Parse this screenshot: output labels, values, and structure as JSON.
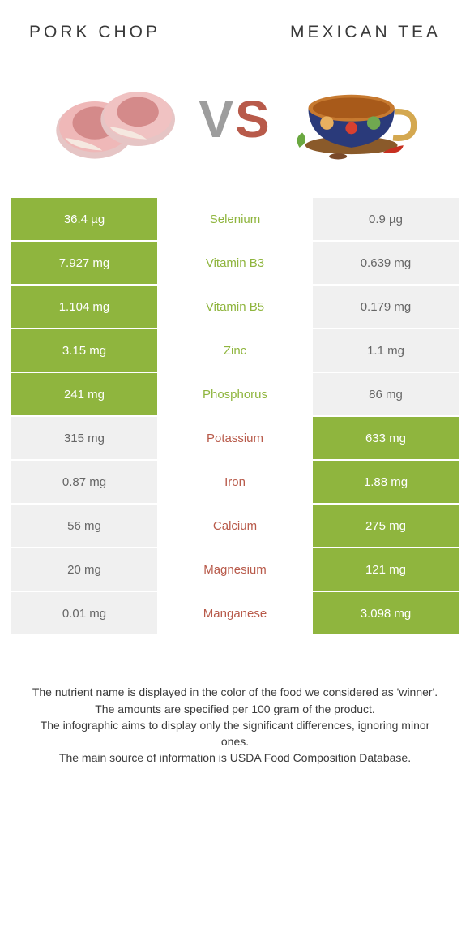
{
  "header": {
    "left": "Pork chop",
    "right": "Mexican tea"
  },
  "vs": {
    "v": "V",
    "s": "S"
  },
  "colors": {
    "green": "#8fb53e",
    "red": "#b85a4a",
    "lose_bg": "#f0f0f0",
    "lose_text": "#666666",
    "header_text": "#3a3a3a"
  },
  "rows": [
    {
      "nutrient": "Selenium",
      "left": "36.4 µg",
      "right": "0.9 µg",
      "winner": "left"
    },
    {
      "nutrient": "Vitamin B3",
      "left": "7.927 mg",
      "right": "0.639 mg",
      "winner": "left"
    },
    {
      "nutrient": "Vitamin B5",
      "left": "1.104 mg",
      "right": "0.179 mg",
      "winner": "left"
    },
    {
      "nutrient": "Zinc",
      "left": "3.15 mg",
      "right": "1.1 mg",
      "winner": "left"
    },
    {
      "nutrient": "Phosphorus",
      "left": "241 mg",
      "right": "86 mg",
      "winner": "left"
    },
    {
      "nutrient": "Potassium",
      "left": "315 mg",
      "right": "633 mg",
      "winner": "right"
    },
    {
      "nutrient": "Iron",
      "left": "0.87 mg",
      "right": "1.88 mg",
      "winner": "right"
    },
    {
      "nutrient": "Calcium",
      "left": "56 mg",
      "right": "275 mg",
      "winner": "right"
    },
    {
      "nutrient": "Magnesium",
      "left": "20 mg",
      "right": "121 mg",
      "winner": "right"
    },
    {
      "nutrient": "Manganese",
      "left": "0.01 mg",
      "right": "3.098 mg",
      "winner": "right"
    }
  ],
  "footer": {
    "l1": "The nutrient name is displayed in the color of the food we considered as 'winner'.",
    "l2": "The amounts are specified per 100 gram of the product.",
    "l3": "The infographic aims to display only the significant differences, ignoring minor ones.",
    "l4": "The main source of information is USDA Food Composition Database."
  }
}
